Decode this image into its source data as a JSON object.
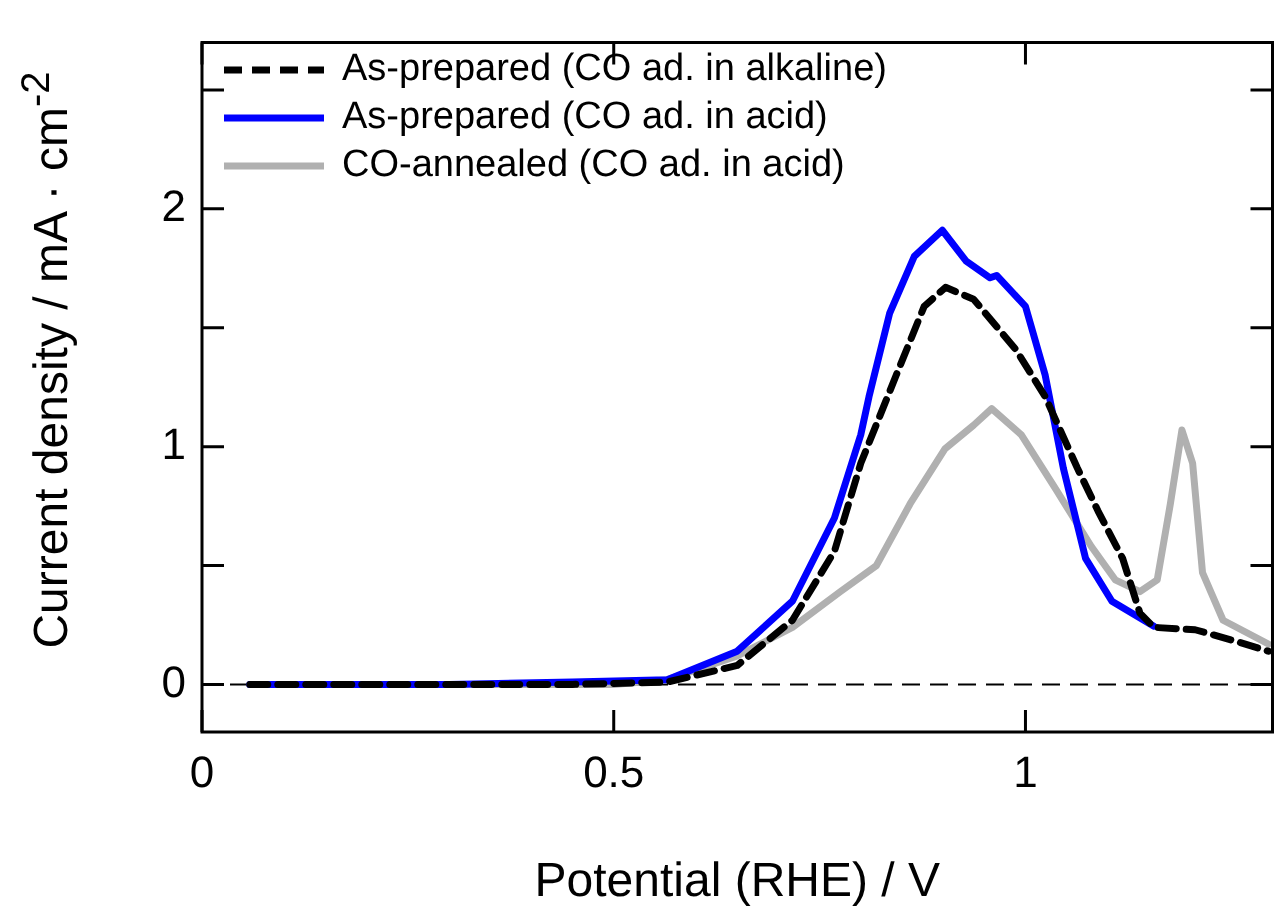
{
  "chart_data": {
    "type": "line",
    "xlabel": "Potential (RHE) / V",
    "ylabel": "Current density  / mA · cm$^{-2}$",
    "xlim": [
      0,
      1.3
    ],
    "xticks": [
      0,
      0.5,
      1
    ],
    "ylim": [
      -0.2,
      2.7
    ],
    "yticks": [
      0,
      {
        "value": 0.5,
        "label": null
      },
      1,
      {
        "value": 1.5,
        "label": null
      },
      2,
      {
        "value": 2.5,
        "label": null
      }
    ],
    "grid": false,
    "legend": "top left",
    "marker": "none",
    "ref_lines": [
      {
        "axis": "y",
        "value": 0,
        "color": "#000000",
        "line_style": "dashed"
      }
    ],
    "series": [
      {
        "name": "As-prepared (CO ad. in alkaline)",
        "color": "#000000",
        "line_style": "dashed",
        "x": [
          0.058,
          0.3,
          0.45,
          0.565,
          0.65,
          0.717,
          0.768,
          0.8,
          0.843,
          0.877,
          0.903,
          0.937,
          0.988,
          1.024,
          1.063,
          1.088,
          1.118,
          1.139,
          1.156,
          1.206,
          1.257,
          1.295
        ],
        "values": [
          0,
          0,
          0,
          0.01,
          0.08,
          0.27,
          0.56,
          0.93,
          1.3,
          1.59,
          1.67,
          1.62,
          1.41,
          1.21,
          0.91,
          0.73,
          0.53,
          0.3,
          0.24,
          0.23,
          0.18,
          0.14
        ]
      },
      {
        "name": "As-prepared (CO ad. in acid)",
        "color": "#0000ff",
        "line_style": "solid",
        "x": [
          0.058,
          0.3,
          0.45,
          0.565,
          0.65,
          0.717,
          0.768,
          0.8,
          0.81,
          0.835,
          0.865,
          0.899,
          0.928,
          0.957,
          0.965,
          1.0,
          1.024,
          1.046,
          1.073,
          1.105,
          1.156
        ],
        "values": [
          0,
          0,
          0.01,
          0.02,
          0.14,
          0.35,
          0.7,
          1.05,
          1.21,
          1.56,
          1.8,
          1.91,
          1.78,
          1.71,
          1.72,
          1.59,
          1.3,
          0.91,
          0.53,
          0.35,
          0.245
        ]
      },
      {
        "name": "CO-annealed (CO ad. in acid)",
        "color": "#b0b0b0",
        "line_style": "solid",
        "x": [
          0.058,
          0.3,
          0.5,
          0.565,
          0.65,
          0.717,
          0.775,
          0.819,
          0.86,
          0.902,
          0.937,
          0.959,
          0.995,
          1.037,
          1.08,
          1.109,
          1.139,
          1.16,
          1.176,
          1.19,
          1.203,
          1.215,
          1.24,
          1.295
        ],
        "values": [
          0,
          0,
          0,
          0.02,
          0.12,
          0.24,
          0.39,
          0.5,
          0.76,
          0.99,
          1.09,
          1.16,
          1.05,
          0.82,
          0.58,
          0.44,
          0.39,
          0.44,
          0.76,
          1.07,
          0.93,
          0.47,
          0.27,
          0.17
        ]
      }
    ]
  }
}
